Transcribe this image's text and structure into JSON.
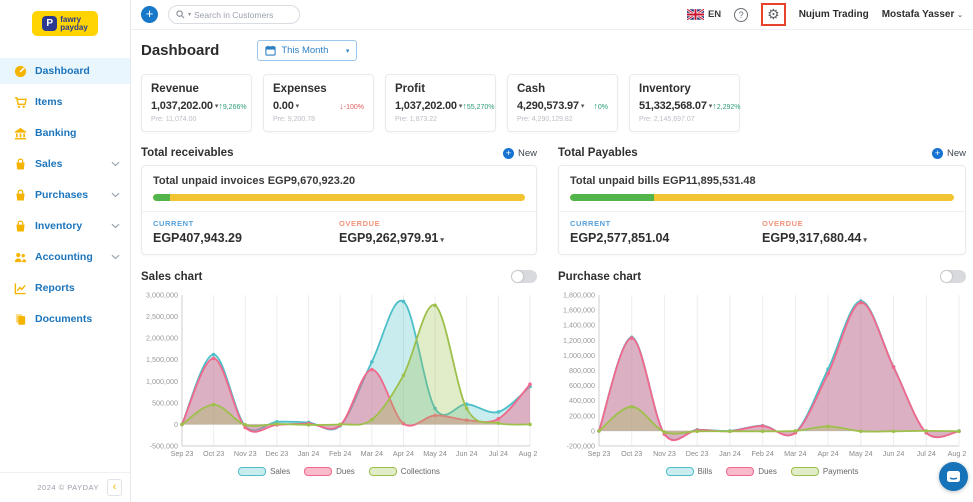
{
  "logo": {
    "mark": "P",
    "line1": "fawry",
    "line2": "payday"
  },
  "topbar": {
    "add_label": "+",
    "search_placeholder": "Search in Customers",
    "language": "EN",
    "help_glyph": "?",
    "gear_glyph": "⚙",
    "company": "Nujum Trading",
    "user": "Mostafa Yasser"
  },
  "sidebar": {
    "items": [
      {
        "label": "Dashboard",
        "icon": "dashboard-icon",
        "active": true,
        "expandable": false
      },
      {
        "label": "Items",
        "icon": "items-icon",
        "active": false,
        "expandable": false
      },
      {
        "label": "Banking",
        "icon": "banking-icon",
        "active": false,
        "expandable": false
      },
      {
        "label": "Sales",
        "icon": "sales-icon",
        "active": false,
        "expandable": true
      },
      {
        "label": "Purchases",
        "icon": "purchases-icon",
        "active": false,
        "expandable": true
      },
      {
        "label": "Inventory",
        "icon": "inventory-icon",
        "active": false,
        "expandable": true
      },
      {
        "label": "Accounting",
        "icon": "accounting-icon",
        "active": false,
        "expandable": true
      },
      {
        "label": "Reports",
        "icon": "reports-icon",
        "active": false,
        "expandable": false
      },
      {
        "label": "Documents",
        "icon": "documents-icon",
        "active": false,
        "expandable": false
      }
    ],
    "footer": "2024 © PAYDAY"
  },
  "header": {
    "title": "Dashboard",
    "period": "This Month"
  },
  "kpis": [
    {
      "label": "Revenue",
      "value": "1,037,202.00",
      "trend": "up",
      "trend_pct": "9,266%",
      "pre": "Pre: 11,074.00"
    },
    {
      "label": "Expenses",
      "value": "0.00",
      "trend": "down",
      "trend_pct": "-100%",
      "pre": "Pre: 9,200.78"
    },
    {
      "label": "Profit",
      "value": "1,037,202.00",
      "trend": "up",
      "trend_pct": "55,270%",
      "pre": "Pre: 1,873.22"
    },
    {
      "label": "Cash",
      "value": "4,290,573.97",
      "trend": "up",
      "trend_pct": "0%",
      "pre": "Pre: 4,290,129.82"
    },
    {
      "label": "Inventory",
      "value": "51,332,568.07",
      "trend": "up",
      "trend_pct": "2,292%",
      "pre": "Pre: 2,145,697.07"
    }
  ],
  "receivables": {
    "title": "Total receivables",
    "new_label": "New",
    "summary": "Total unpaid invoices EGP9,670,923.20",
    "progress_green_pct": 4.5,
    "current_label": "CURRENT",
    "current_value": "EGP407,943.29",
    "overdue_label": "OVERDUE",
    "overdue_value": "EGP9,262,979.91"
  },
  "payables": {
    "title": "Total Payables",
    "new_label": "New",
    "summary": "Total unpaid bills EGP11,895,531.48",
    "progress_green_pct": 22,
    "current_label": "CURRENT",
    "current_value": "EGP2,577,851.04",
    "overdue_label": "OVERDUE",
    "overdue_value": "EGP9,317,680.44"
  },
  "chart_data": [
    {
      "type": "area",
      "title": "Sales chart",
      "x": [
        "Sep 23",
        "Oct 23",
        "Nov 23",
        "Dec 23",
        "Jan 24",
        "Feb 24",
        "Mar 24",
        "Apr 24",
        "May 24",
        "Jun 24",
        "Jul 24",
        "Aug 24"
      ],
      "series": [
        {
          "name": "Sales",
          "color": "#4CBFC8",
          "fill": "rgba(76,191,200,0.30)",
          "values": [
            0,
            1620000,
            -40000,
            60000,
            45000,
            -30000,
            1450000,
            2850000,
            370000,
            470000,
            290000,
            880000
          ]
        },
        {
          "name": "Dues",
          "color": "#F2688C",
          "fill": "rgba(242,104,140,0.45)",
          "values": [
            0,
            1530000,
            -70000,
            -10000,
            20000,
            -20000,
            1270000,
            20000,
            210000,
            100000,
            130000,
            930000
          ]
        },
        {
          "name": "Collections",
          "color": "#9DC04B",
          "fill": "rgba(157,192,75,0.30)",
          "values": [
            0,
            460000,
            -10000,
            10000,
            -10000,
            0,
            110000,
            1140000,
            2760000,
            370000,
            30000,
            0
          ]
        }
      ],
      "ylim": [
        -500000,
        3000000
      ],
      "ytick_step": 500000,
      "grid": "vertical",
      "legend_position": "bottom"
    },
    {
      "type": "area",
      "title": "Purchase chart",
      "x": [
        "Sep 23",
        "Oct 23",
        "Nov 23",
        "Dec 23",
        "Jan 24",
        "Feb 24",
        "Mar 24",
        "Apr 24",
        "May 24",
        "Jun 24",
        "Jul 24",
        "Aug 24"
      ],
      "series": [
        {
          "name": "Bills",
          "color": "#4CBFC8",
          "fill": "rgba(76,191,200,0.30)",
          "values": [
            0,
            1240000,
            -40000,
            15000,
            0,
            70000,
            -20000,
            820000,
            1720000,
            850000,
            -25000,
            0
          ]
        },
        {
          "name": "Dues",
          "color": "#F2688C",
          "fill": "rgba(242,104,140,0.45)",
          "values": [
            0,
            1230000,
            -45000,
            10000,
            -5000,
            65000,
            -25000,
            760000,
            1700000,
            845000,
            -25000,
            -5000
          ]
        },
        {
          "name": "Payments",
          "color": "#9DC04B",
          "fill": "rgba(157,192,75,0.30)",
          "values": [
            0,
            320000,
            -15000,
            -5000,
            -5000,
            -5000,
            0,
            60000,
            -5000,
            -5000,
            0,
            -5000
          ]
        }
      ],
      "ylim": [
        -200000,
        1800000
      ],
      "ytick_step": 200000,
      "grid": "vertical",
      "legend_position": "bottom"
    }
  ],
  "colors": {
    "brand_yellow": "#F5B400",
    "brand_blue": "#1C75BC",
    "accent_blue": "#1778C8",
    "trend_up_green": "#2E9E77",
    "trend_down_red": "#E25C5C",
    "progress_yellow": "#F3C431",
    "progress_green": "#52B54B",
    "current_blue": "#54A0DC",
    "overdue_orange": "#F2937B",
    "highlight_red": "#E8412C"
  }
}
